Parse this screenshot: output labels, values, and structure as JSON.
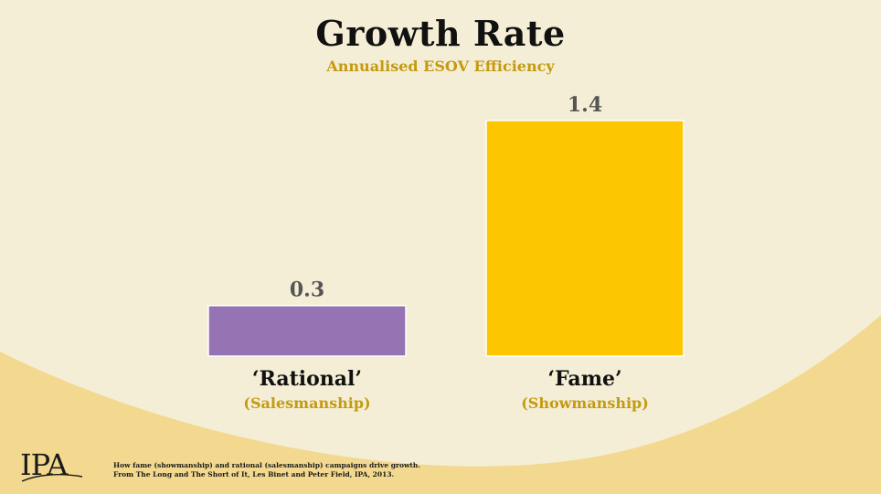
{
  "chart_data": {
    "type": "bar",
    "title": "Growth Rate",
    "subtitle": "Annualised ESOV Efficiency",
    "categories": [
      "‘Rational’",
      "‘Fame’"
    ],
    "category_subtitles": [
      "(Salesmanship)",
      "(Showmanship)"
    ],
    "values": [
      0.3,
      1.4
    ],
    "value_labels": [
      "0.3",
      "1.4"
    ],
    "bar_colors": [
      "#9673b3",
      "#fcc600"
    ],
    "ylim": [
      0,
      1.4
    ],
    "grid": false,
    "xlabel": "",
    "ylabel": ""
  },
  "colors": {
    "background": "#f5eed6",
    "wave": "#f3d98f",
    "subtitle_gold": "#c49a0f",
    "value_label": "#555555"
  },
  "logo": {
    "text": "IPA"
  },
  "footnote": {
    "line1": "How fame (showmanship) and rational (salesmanship) campaigns drive growth.",
    "line2": "From The Long and The Short of It, Les Binet and Peter Field, IPA, 2013."
  }
}
